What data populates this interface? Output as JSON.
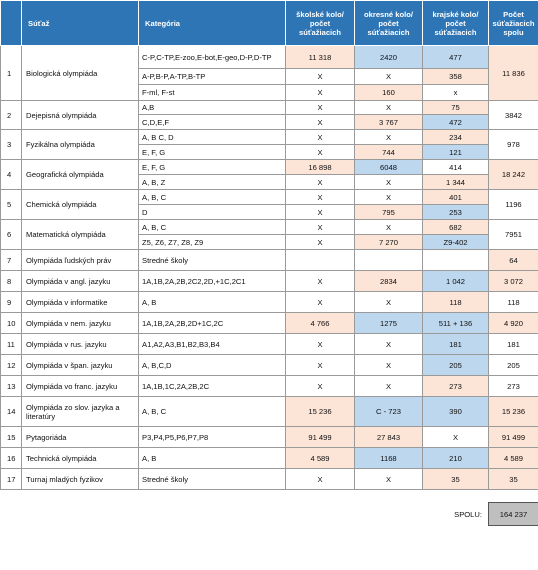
{
  "headers": {
    "h1": "",
    "h2": "Súťaž",
    "h3": "Kategória",
    "h4": "školské kolo/ počet súťažiacich",
    "h5": "okresné kolo/ počet súťažiacich",
    "h6": "krajské kolo/ počet súťažiacich",
    "h7": "Počet súťažiacich spolu"
  },
  "rows": [
    {
      "num": "1",
      "name": "Biologická olympiáda",
      "total": "11 836",
      "sub": [
        {
          "cat": "C-P,C-TP,E-zoo,E-bot,E-geo,D-P,D-TP",
          "s": "11 318",
          "o": "2420",
          "k": "477"
        },
        {
          "cat": "A-P,B-P,A-TP,B-TP",
          "s": "X",
          "o": "X",
          "k": "358"
        },
        {
          "cat": "F-ml, F-st",
          "s": "X",
          "o": "160",
          "k": "x"
        }
      ]
    },
    {
      "num": "2",
      "name": "Dejepisná olympiáda",
      "total": "3842",
      "sub": [
        {
          "cat": "A,B",
          "s": "X",
          "o": "X",
          "k": "75"
        },
        {
          "cat": "C,D,E,F",
          "s": "X",
          "o": "3 767",
          "k": "472"
        }
      ]
    },
    {
      "num": "3",
      "name": "Fyzikálna olympiáda",
      "total": "978",
      "sub": [
        {
          "cat": "A, B C, D",
          "s": "X",
          "o": "X",
          "k": "234"
        },
        {
          "cat": "E, F, G",
          "s": "X",
          "o": "744",
          "k": "121"
        }
      ]
    },
    {
      "num": "4",
      "name": "Geografická olympiáda",
      "total": "18 242",
      "sub": [
        {
          "cat": "E, F, G",
          "s": "16 898",
          "o": "6048",
          "k": "414"
        },
        {
          "cat": "A, B, Z",
          "s": "X",
          "o": "X",
          "k": "1 344"
        }
      ]
    },
    {
      "num": "5",
      "name": "Chemická olympiáda",
      "total": "1196",
      "sub": [
        {
          "cat": "A, B, C",
          "s": "X",
          "o": "X",
          "k": "401"
        },
        {
          "cat": "D",
          "s": "X",
          "o": "795",
          "k": "253"
        }
      ]
    },
    {
      "num": "6",
      "name": "Matematická olympiáda",
      "total": "7951",
      "sub": [
        {
          "cat": "A, B, C",
          "s": "X",
          "o": "X",
          "k": "682"
        },
        {
          "cat": "Z5, Z6, Z7, Z8, Z9",
          "s": "X",
          "o": "7 270",
          "k": "Z9-402"
        }
      ]
    },
    {
      "num": "7",
      "name": "Olympiáda ľudských práv",
      "total": "64",
      "sub": [
        {
          "cat": "Stredné školy",
          "s": "",
          "o": "",
          "k": ""
        }
      ]
    },
    {
      "num": "8",
      "name": "Olympiáda v angl. jazyku",
      "total": "3 072",
      "sub": [
        {
          "cat": "1A,1B,2A,2B,2C2,2D,+1C,2C1",
          "s": "X",
          "o": "2834",
          "k": "1 042"
        }
      ]
    },
    {
      "num": "9",
      "name": "Olympiáda v informatike",
      "total": "118",
      "sub": [
        {
          "cat": "A, B",
          "s": "X",
          "o": "X",
          "k": "118"
        }
      ]
    },
    {
      "num": "10",
      "name": "Olympiáda v nem. jazyku",
      "total": "4 920",
      "sub": [
        {
          "cat": "1A,1B,2A,2B,2D+1C,2C",
          "s": "4 766",
          "o": "1275",
          "k": "511 + 136"
        }
      ]
    },
    {
      "num": "11",
      "name": "Olympiáda v rus. jazyku",
      "total": "181",
      "sub": [
        {
          "cat": "A1,A2,A3,B1,B2,B3,B4",
          "s": "X",
          "o": "X",
          "k": "181"
        }
      ]
    },
    {
      "num": "12",
      "name": "Olympiáda v špan. jazyku",
      "total": "205",
      "sub": [
        {
          "cat": "A, B,C,D",
          "s": "X",
          "o": "X",
          "k": "205"
        }
      ]
    },
    {
      "num": "13",
      "name": "Olympiáda vo franc. jazyku",
      "total": "273",
      "sub": [
        {
          "cat": "1A,1B,1C,2A,2B,2C",
          "s": "X",
          "o": "X",
          "k": "273"
        }
      ]
    },
    {
      "num": "14",
      "name": "Olympiáda zo slov. jazyka a literatúry",
      "total": "15 236",
      "sub": [
        {
          "cat": "A, B, C",
          "s": "15 236",
          "o": "C - 723",
          "k": "390"
        }
      ]
    },
    {
      "num": "15",
      "name": "Pytagoriáda",
      "total": "91 499",
      "sub": [
        {
          "cat": "P3,P4,P5,P6,P7,P8",
          "s": "91 499",
          "o": "27 843",
          "k": "X"
        }
      ]
    },
    {
      "num": "16",
      "name": "Technická olympiáda",
      "total": "4 589",
      "sub": [
        {
          "cat": "A, B",
          "s": "4 589",
          "o": "1168",
          "k": "210"
        }
      ]
    },
    {
      "num": "17",
      "name": "Turnaj mladých fyzikov",
      "total": "35",
      "sub": [
        {
          "cat": "Stredné školy",
          "s": "X",
          "o": "X",
          "k": "35"
        }
      ]
    }
  ],
  "footer": {
    "label": "SPOLU:",
    "value": "164 237"
  },
  "colors": {
    "header": "#2e75b6",
    "pink": "#fce4d6",
    "blue": "#bdd7ee",
    "total_box": "#bfbfbf"
  }
}
